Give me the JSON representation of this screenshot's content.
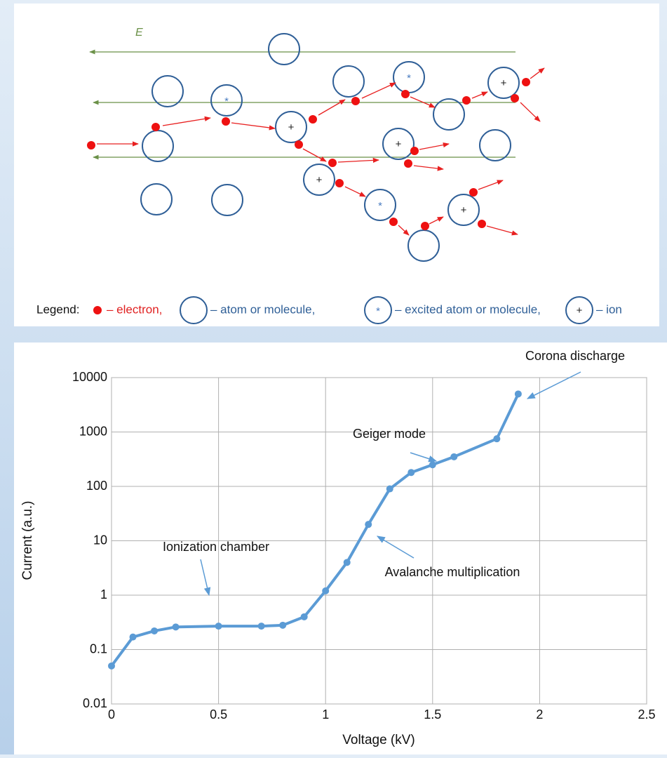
{
  "diagram": {
    "field_label": "E",
    "ion_symbol": "+",
    "excited_symbol": "*",
    "legend": {
      "title": "Legend:",
      "electron": "– electron,",
      "atom": "– atom or molecule,",
      "excited": "– excited atom or molecule,",
      "ion": "– ion"
    }
  },
  "chart_data": {
    "type": "line",
    "x_label": "Voltage (kV)",
    "y_label": "Current (a.u.)",
    "x": [
      0,
      0.1,
      0.2,
      0.3,
      0.5,
      0.7,
      0.8,
      0.9,
      1.0,
      1.1,
      1.2,
      1.3,
      1.4,
      1.5,
      1.6,
      1.8,
      1.9
    ],
    "values": [
      0.05,
      0.17,
      0.22,
      0.26,
      0.27,
      0.27,
      0.28,
      0.4,
      1.2,
      4,
      20,
      90,
      180,
      250,
      350,
      750,
      5000
    ],
    "color": "#5b9bd5",
    "xlim": [
      0,
      2.5
    ],
    "xticks": [
      0,
      0.5,
      1,
      1.5,
      2,
      2.5
    ],
    "ylim": [
      0.01,
      10000
    ],
    "yticks": [
      0.01,
      0.1,
      1,
      10,
      100,
      1000,
      10000
    ],
    "yscale": "log",
    "grid": true,
    "annotations": [
      {
        "text": "Corona discharge"
      },
      {
        "text": "Geiger mode"
      },
      {
        "text": "Avalanche multiplication"
      },
      {
        "text": "Ionization chamber"
      }
    ]
  }
}
